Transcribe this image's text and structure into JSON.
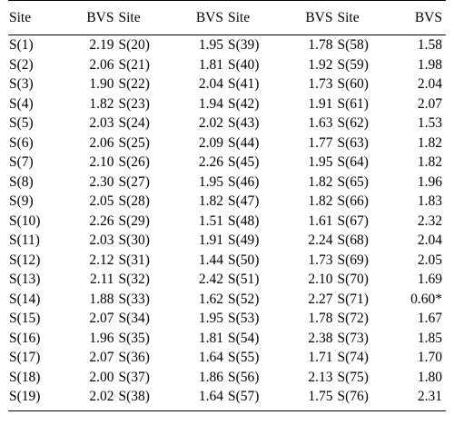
{
  "table": {
    "headers": [
      "Site",
      "BVS",
      "Site",
      "BVS",
      "Site",
      "BVS",
      "Site",
      "BVS"
    ],
    "rows": [
      [
        "S(1)",
        "2.19",
        "S(20)",
        "1.95",
        "S(39)",
        "1.78",
        "S(58)",
        "1.58"
      ],
      [
        "S(2)",
        "2.06",
        "S(21)",
        "1.81",
        "S(40)",
        "1.92",
        "S(59)",
        "1.98"
      ],
      [
        "S(3)",
        "1.90",
        "S(22)",
        "2.04",
        "S(41)",
        "1.73",
        "S(60)",
        "2.04"
      ],
      [
        "S(4)",
        "1.82",
        "S(23)",
        "1.94",
        "S(42)",
        "1.91",
        "S(61)",
        "2.07"
      ],
      [
        "S(5)",
        "2.03",
        "S(24)",
        "2.02",
        "S(43)",
        "1.63",
        "S(62)",
        "1.53"
      ],
      [
        "S(6)",
        "2.06",
        "S(25)",
        "2.09",
        "S(44)",
        "1.77",
        "S(63)",
        "1.82"
      ],
      [
        "S(7)",
        "2.10",
        "S(26)",
        "2.26",
        "S(45)",
        "1.95",
        "S(64)",
        "1.82"
      ],
      [
        "S(8)",
        "2.30",
        "S(27)",
        "1.95",
        "S(46)",
        "1.82",
        "S(65)",
        "1.96"
      ],
      [
        "S(9)",
        "2.05",
        "S(28)",
        "1.82",
        "S(47)",
        "1.82",
        "S(66)",
        "1.83"
      ],
      [
        "S(10)",
        "2.26",
        "S(29)",
        "1.51",
        "S(48)",
        "1.61",
        "S(67)",
        "2.32"
      ],
      [
        "S(11)",
        "2.03",
        "S(30)",
        "1.91",
        "S(49)",
        "2.24",
        "S(68)",
        "2.04"
      ],
      [
        "S(12)",
        "2.12",
        "S(31)",
        "1.44",
        "S(50)",
        "1.73",
        "S(69)",
        "2.05"
      ],
      [
        "S(13)",
        "2.11",
        "S(32)",
        "2.42",
        "S(51)",
        "2.10",
        "S(70)",
        "1.69"
      ],
      [
        "S(14)",
        "1.88",
        "S(33)",
        "1.62",
        "S(52)",
        "2.27",
        "S(71)",
        "0.60*"
      ],
      [
        "S(15)",
        "2.07",
        "S(34)",
        "1.95",
        "S(53)",
        "1.78",
        "S(72)",
        "1.67"
      ],
      [
        "S(16)",
        "1.96",
        "S(35)",
        "1.81",
        "S(54)",
        "2.38",
        "S(73)",
        "1.85"
      ],
      [
        "S(17)",
        "2.07",
        "S(36)",
        "1.64",
        "S(55)",
        "1.71",
        "S(74)",
        "1.70"
      ],
      [
        "S(18)",
        "2.00",
        "S(37)",
        "1.86",
        "S(56)",
        "2.13",
        "S(75)",
        "1.80"
      ],
      [
        "S(19)",
        "2.02",
        "S(38)",
        "1.64",
        "S(57)",
        "1.75",
        "S(76)",
        "2.31"
      ]
    ]
  }
}
